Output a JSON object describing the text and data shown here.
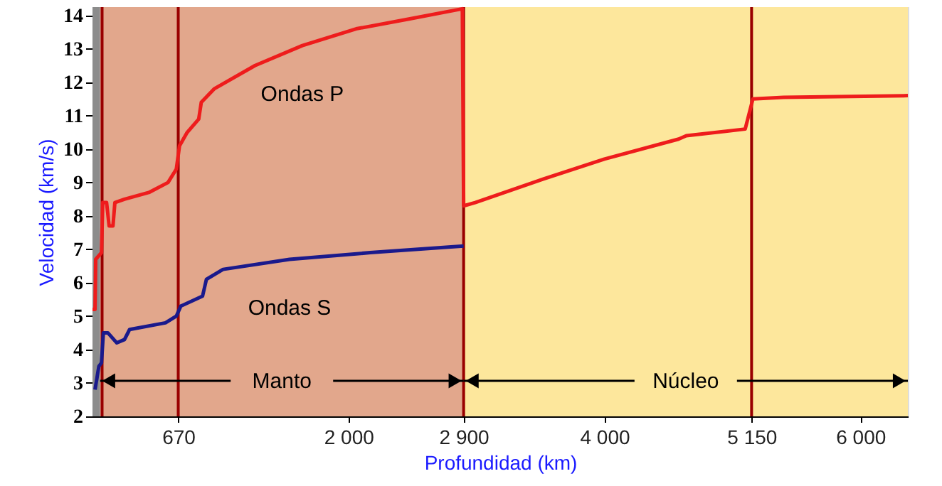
{
  "chart_data": {
    "type": "line",
    "xlabel": "Profundidad (km)",
    "ylabel": "Velocidad (km/s)",
    "xlim": [
      0,
      6371
    ],
    "ylim": [
      2,
      14.25
    ],
    "xticks": [
      {
        "value": 670,
        "label": "670"
      },
      {
        "value": 2000,
        "label": "2 000"
      },
      {
        "value": 2900,
        "label": "2 900"
      },
      {
        "value": 4000,
        "label": "4 000"
      },
      {
        "value": 5150,
        "label": "5 150"
      },
      {
        "value": 6000,
        "label": "6 000"
      }
    ],
    "yticks": [
      2,
      3,
      4,
      5,
      6,
      7,
      8,
      9,
      10,
      11,
      12,
      13,
      14
    ],
    "grid": false,
    "marker": "none",
    "line_style": "solid",
    "series": [
      {
        "name": "Ondas P",
        "color": "#ee1c1c",
        "x": [
          0,
          20,
          25,
          70,
          80,
          110,
          130,
          160,
          175,
          250,
          440,
          590,
          655,
          680,
          740,
          830,
          850,
          950,
          1270,
          1640,
          2060,
          2480,
          2890,
          2900,
          2990,
          3520,
          4000,
          4580,
          4640,
          5100,
          5160,
          5400,
          6371
        ],
        "values": [
          5.2,
          5.2,
          6.7,
          6.9,
          8.4,
          8.4,
          7.7,
          7.7,
          8.4,
          8.5,
          8.7,
          9.0,
          9.4,
          10.1,
          10.5,
          10.9,
          11.4,
          11.8,
          12.5,
          13.1,
          13.6,
          13.9,
          14.2,
          8.3,
          8.4,
          9.1,
          9.7,
          10.3,
          10.4,
          10.6,
          11.5,
          11.55,
          11.6
        ]
      },
      {
        "name": "Ondas S",
        "color": "#1a1a8c",
        "x": [
          20,
          50,
          70,
          85,
          120,
          190,
          250,
          290,
          570,
          655,
          690,
          860,
          890,
          1020,
          1540,
          2170,
          2900
        ],
        "values": [
          2.8,
          3.5,
          3.6,
          4.5,
          4.5,
          4.2,
          4.3,
          4.6,
          4.8,
          5.0,
          5.3,
          5.6,
          6.1,
          6.4,
          6.7,
          6.9,
          7.1
        ]
      }
    ],
    "ref_lines": [
      {
        "axis": "x",
        "value": 75,
        "label": null,
        "color": "#990000"
      },
      {
        "axis": "x",
        "value": 670,
        "label": null,
        "color": "#990000"
      },
      {
        "axis": "x",
        "value": 2900,
        "label": null,
        "color": "#990000"
      },
      {
        "axis": "x",
        "value": 5150,
        "label": null,
        "color": "#990000"
      }
    ],
    "bands": [
      {
        "axis": "x",
        "from": 0,
        "to": 60,
        "label": null,
        "color": "#8c8c8c"
      },
      {
        "axis": "x",
        "from": 60,
        "to": 2900,
        "label": "Manto",
        "color": "#e2a78c"
      },
      {
        "axis": "x",
        "from": 2900,
        "to": 6371,
        "label": "Núcleo",
        "color": "#fde79c"
      }
    ]
  }
}
